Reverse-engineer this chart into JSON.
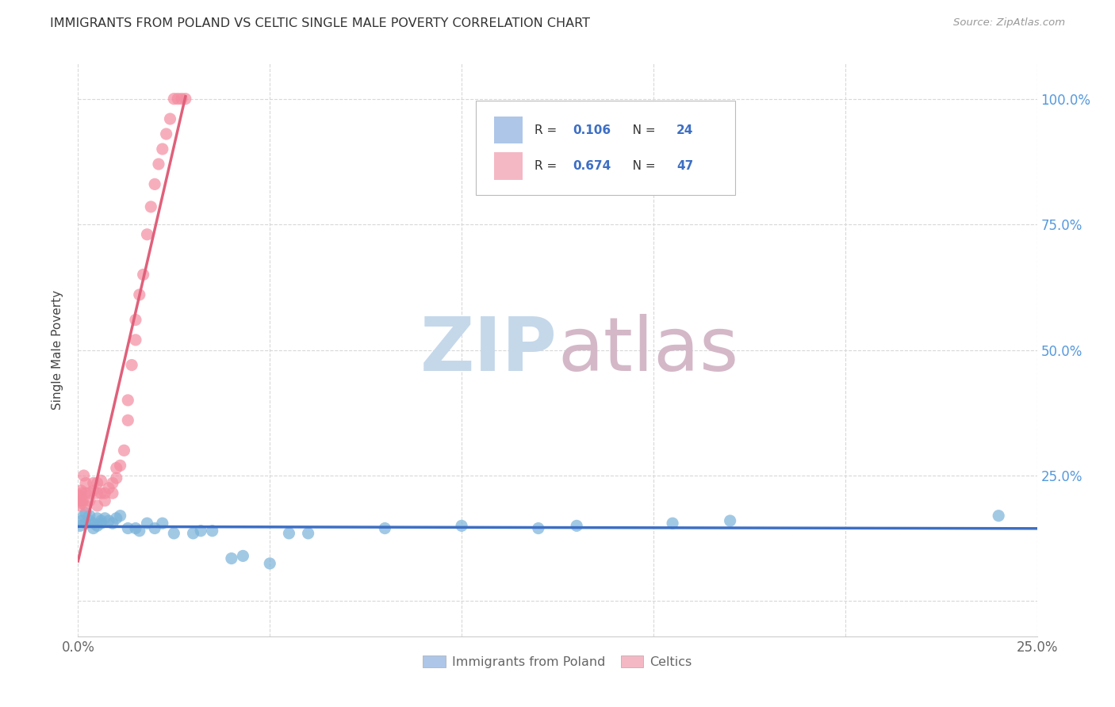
{
  "title": "IMMIGRANTS FROM POLAND VS CELTIC SINGLE MALE POVERTY CORRELATION CHART",
  "source": "Source: ZipAtlas.com",
  "ylabel": "Single Male Poverty",
  "xlim": [
    0,
    0.25
  ],
  "ylim": [
    -0.07,
    1.07
  ],
  "xtick_positions": [
    0.0,
    0.05,
    0.1,
    0.15,
    0.2,
    0.25
  ],
  "xticklabels": [
    "0.0%",
    "",
    "",
    "",
    "",
    "25.0%"
  ],
  "ytick_positions": [
    0.0,
    0.25,
    0.5,
    0.75,
    1.0
  ],
  "yticklabels_right": [
    "",
    "25.0%",
    "50.0%",
    "75.0%",
    "100.0%"
  ],
  "scatter_color_poland": "#7ab3d9",
  "scatter_color_celtics": "#f48ca0",
  "line_color_poland": "#3d6fc4",
  "line_color_celtics": "#e0607a",
  "legend_color_poland": "#aec6e8",
  "legend_color_celtics": "#f4b8c4",
  "watermark_zip_color": "#c5d8ea",
  "watermark_atlas_color": "#d4b8c8",
  "background_color": "#ffffff",
  "grid_color": "#d8d8d8",
  "poland_x": [
    0.0005,
    0.001,
    0.0015,
    0.002,
    0.002,
    0.003,
    0.003,
    0.004,
    0.004,
    0.005,
    0.005,
    0.006,
    0.006,
    0.007,
    0.008,
    0.009,
    0.01,
    0.011,
    0.013,
    0.015,
    0.016,
    0.018,
    0.02,
    0.022,
    0.025,
    0.03,
    0.032,
    0.035,
    0.04,
    0.043,
    0.05,
    0.055,
    0.06,
    0.08,
    0.1,
    0.12,
    0.13,
    0.155,
    0.17,
    0.24
  ],
  "poland_y": [
    0.15,
    0.16,
    0.17,
    0.155,
    0.175,
    0.17,
    0.16,
    0.155,
    0.145,
    0.165,
    0.15,
    0.16,
    0.155,
    0.165,
    0.16,
    0.155,
    0.165,
    0.17,
    0.145,
    0.145,
    0.14,
    0.155,
    0.145,
    0.155,
    0.135,
    0.135,
    0.14,
    0.14,
    0.085,
    0.09,
    0.075,
    0.135,
    0.135,
    0.145,
    0.15,
    0.145,
    0.15,
    0.155,
    0.16,
    0.17
  ],
  "celtics_x": [
    0.0004,
    0.0005,
    0.0006,
    0.0008,
    0.001,
    0.001,
    0.0012,
    0.0015,
    0.002,
    0.002,
    0.002,
    0.003,
    0.003,
    0.004,
    0.004,
    0.005,
    0.005,
    0.005,
    0.006,
    0.006,
    0.007,
    0.007,
    0.008,
    0.009,
    0.009,
    0.01,
    0.01,
    0.011,
    0.012,
    0.013,
    0.013,
    0.014,
    0.015,
    0.015,
    0.016,
    0.017,
    0.018,
    0.019,
    0.02,
    0.021,
    0.022,
    0.023,
    0.024,
    0.025,
    0.026,
    0.027,
    0.028
  ],
  "celtics_y": [
    0.19,
    0.2,
    0.21,
    0.22,
    0.195,
    0.215,
    0.2,
    0.25,
    0.19,
    0.215,
    0.235,
    0.2,
    0.215,
    0.22,
    0.235,
    0.19,
    0.215,
    0.235,
    0.215,
    0.24,
    0.2,
    0.215,
    0.225,
    0.215,
    0.235,
    0.245,
    0.265,
    0.27,
    0.3,
    0.36,
    0.4,
    0.47,
    0.52,
    0.56,
    0.61,
    0.65,
    0.73,
    0.785,
    0.83,
    0.87,
    0.9,
    0.93,
    0.96,
    1.0,
    1.0,
    1.0,
    1.0
  ]
}
